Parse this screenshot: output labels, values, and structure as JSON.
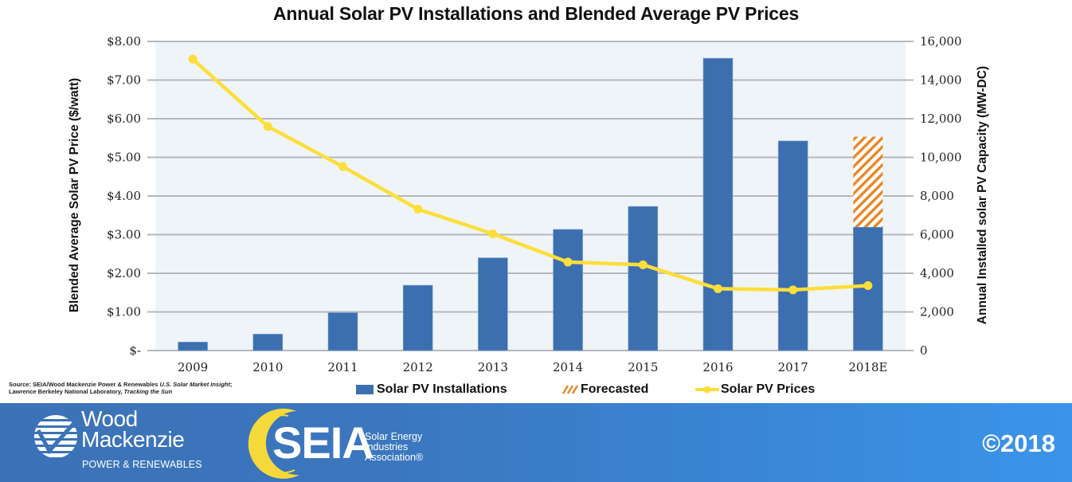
{
  "chart_data": {
    "type": "bar",
    "title": "Annual Solar PV Installations and Blended Average PV Prices",
    "categories": [
      "2009",
      "2010",
      "2011",
      "2012",
      "2013",
      "2014",
      "2015",
      "2016",
      "2017",
      "2018E"
    ],
    "series": [
      {
        "name": "Solar PV Installations",
        "type": "bar",
        "axis": "right",
        "color": "#3C6FB0",
        "values": [
          440,
          850,
          1960,
          3380,
          4800,
          6270,
          7460,
          15130,
          10850,
          6390
        ]
      },
      {
        "name": "Forecasted",
        "type": "bar-stacked-hatched",
        "axis": "right",
        "color": "#E8892A",
        "values": [
          0,
          0,
          0,
          0,
          0,
          0,
          0,
          0,
          0,
          4680
        ]
      },
      {
        "name": "Solar PV Prices",
        "type": "line",
        "axis": "left",
        "color": "#FDDE3A",
        "values": [
          7.54,
          5.8,
          4.76,
          3.66,
          3.02,
          2.29,
          2.22,
          1.6,
          1.57,
          1.68
        ]
      }
    ],
    "ylabel": "Blended Average Solar PV Price ($/watt)",
    "ylabel_right": "Annual Installed solar PV Capacity (MW-DC)",
    "xlabel": "",
    "ylim": [
      0,
      8
    ],
    "ylim_right": [
      0,
      16000
    ],
    "yticks": [
      "$-",
      "$1.00",
      "$2.00",
      "$3.00",
      "$4.00",
      "$5.00",
      "$6.00",
      "$7.00",
      "$8.00"
    ],
    "yticks_right": [
      "0",
      "2,000",
      "4,000",
      "6,000",
      "8,000",
      "10,000",
      "12,000",
      "14,000",
      "16,000"
    ],
    "grid": true,
    "legend": {
      "placement": "bottom",
      "entries": [
        "Solar PV Installations",
        "Forecasted",
        "Solar PV Prices"
      ]
    }
  },
  "source_note": {
    "prefix": "Source: SEIA/Wood Mackenzie Power & Renewables ",
    "title1": "U.S. Solar Market Insight",
    "sep": ";",
    "line2_prefix": "Lawrence Berkeley National Laboratory, ",
    "title2": "Tracking the Sun"
  },
  "banner": {
    "wm_name_line1": "Wood",
    "wm_name_line2": "Mackenzie",
    "wm_sub": "POWER & RENEWABLES",
    "seia_name": "SEIA",
    "seia_sub1": "Solar Energy",
    "seia_sub2": "Industries",
    "seia_sub3": "Association®",
    "copyright": "©2018"
  }
}
